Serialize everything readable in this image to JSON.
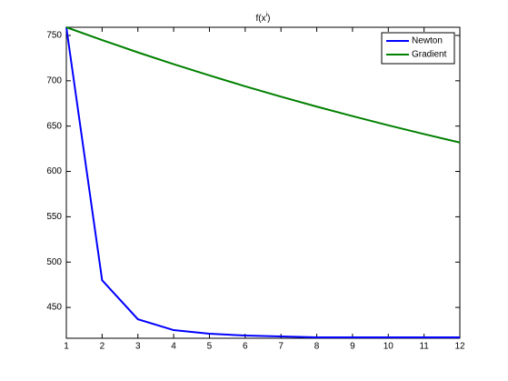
{
  "chart_data": {
    "type": "line",
    "title": [
      "f(x",
      "i",
      ")"
    ],
    "x": [
      1,
      2,
      3,
      4,
      5,
      6,
      7,
      8,
      9,
      10,
      11,
      12
    ],
    "series": [
      {
        "name": "Newton",
        "color": "#0000ff",
        "values": [
          759,
          480,
          437,
          425,
          421,
          419,
          418,
          417,
          417,
          417,
          417,
          417
        ]
      },
      {
        "name": "Gradient",
        "color": "#008000",
        "values": [
          759,
          744.9,
          731.3,
          718.3,
          705.9,
          693.9,
          682.5,
          671.5,
          661,
          650.9,
          641.2,
          631.9
        ]
      }
    ],
    "xlim": [
      1,
      12
    ],
    "xticks": [
      1,
      2,
      3,
      4,
      5,
      6,
      7,
      8,
      9,
      10,
      11,
      12
    ],
    "ylim": [
      416,
      759
    ],
    "yticks": [
      450,
      500,
      550,
      600,
      650,
      700,
      750
    ],
    "grid": false,
    "legend": "top-right"
  }
}
